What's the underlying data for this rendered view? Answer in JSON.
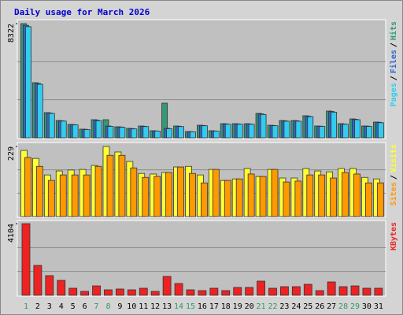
{
  "title": "Daily usage for March 2026",
  "chart_data": [
    {
      "type": "bar",
      "legend_separator": "/",
      "ylim": [
        0,
        8322
      ],
      "yticks": [
        8322
      ],
      "series": [
        {
          "name": "Pages",
          "color": "#33ccee",
          "values": [
            8100,
            3900,
            1780,
            1220,
            940,
            600,
            1250,
            830,
            770,
            650,
            820,
            490,
            660,
            820,
            440,
            880,
            490,
            990,
            990,
            990,
            1700,
            880,
            1210,
            1210,
            1540,
            830,
            1870,
            990,
            1320,
            830,
            1100
          ]
        },
        {
          "name": "Files",
          "color": "#3366cc",
          "values": [
            8200,
            3960,
            1810,
            1240,
            960,
            620,
            1290,
            861,
            790,
            670,
            840,
            500,
            689,
            840,
            450,
            900,
            500,
            1010,
            1010,
            1010,
            1740,
            900,
            1240,
            1240,
            1580,
            850,
            1920,
            1010,
            1350,
            850,
            1130
          ]
        },
        {
          "name": "Hits",
          "color": "#339977",
          "values": [
            8322,
            4018,
            1837,
            1263,
            976,
            631,
            1320,
            1320,
            804,
            689,
            861,
            517,
            2526,
            861,
            459,
            918,
            517,
            1033,
            1033,
            1033,
            1779,
            918,
            1263,
            1263,
            1607,
            861,
            1952,
            1033,
            1378,
            861,
            1148
          ]
        }
      ]
    },
    {
      "type": "bar",
      "legend_separator": "/",
      "ylim": [
        0,
        229
      ],
      "yticks": [
        229
      ],
      "series": [
        {
          "name": "Sites",
          "color": "#ff9900",
          "values": [
            193,
            164,
            118,
            136,
            136,
            136,
            164,
            200,
            200,
            159,
            128,
            131,
            144,
            162,
            141,
            110,
            154,
            118,
            123,
            139,
            131,
            154,
            113,
            116,
            136,
            136,
            126,
            144,
            139,
            110,
            110
          ]
        },
        {
          "name": "Visits",
          "color": "#ffff33",
          "values": [
            216,
            190,
            136,
            149,
            152,
            154,
            167,
            229,
            211,
            180,
            141,
            139,
            144,
            162,
            164,
            136,
            154,
            118,
            123,
            157,
            131,
            154,
            126,
            126,
            157,
            149,
            146,
            157,
            157,
            128,
            123
          ]
        }
      ]
    },
    {
      "type": "bar",
      "legend_separator": "/",
      "ylim": [
        0,
        4104
      ],
      "yticks": [
        4104
      ],
      "series": [
        {
          "name": "KBytes",
          "color": "#ee2222",
          "values": [
            4104,
            1714,
            1128,
            857,
            406,
            225,
            541,
            316,
            361,
            316,
            406,
            225,
            1082,
            677,
            316,
            271,
            406,
            271,
            451,
            451,
            812,
            406,
            496,
            496,
            631,
            271,
            767,
            496,
            541,
            406,
            406
          ]
        }
      ],
      "categories": [
        "1",
        "2",
        "3",
        "4",
        "5",
        "6",
        "7",
        "8",
        "9",
        "10",
        "11",
        "12",
        "13",
        "14",
        "15",
        "16",
        "17",
        "18",
        "19",
        "20",
        "21",
        "22",
        "23",
        "24",
        "25",
        "26",
        "27",
        "28",
        "29",
        "30",
        "31"
      ],
      "weekend_categories": [
        "1",
        "7",
        "8",
        "14",
        "15",
        "21",
        "22",
        "28",
        "29"
      ],
      "weekend_color": "#339966"
    }
  ]
}
